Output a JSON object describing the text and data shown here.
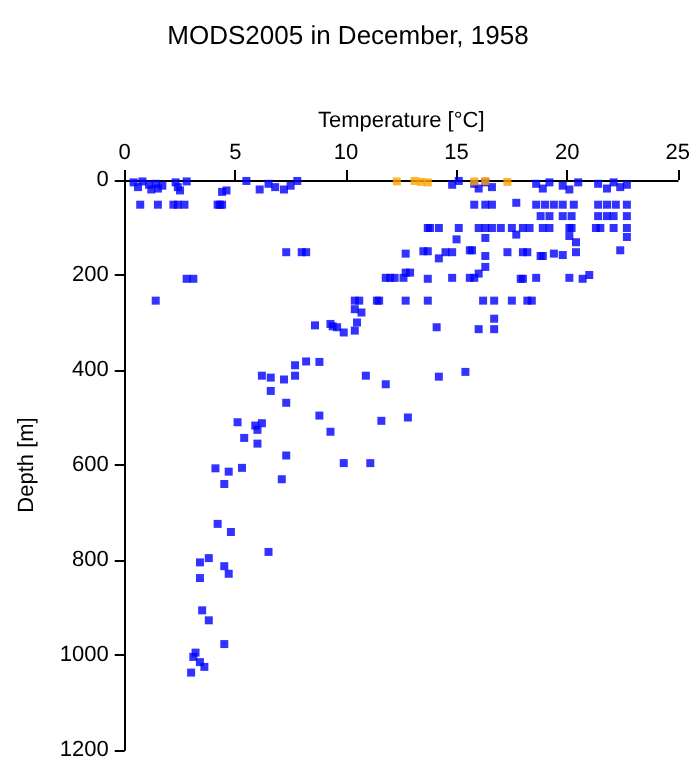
{
  "chart_data": {
    "type": "scatter",
    "title": "MODS2005 in December, 1958",
    "xlabel": "Temperature [°C]",
    "ylabel": "Depth [m]",
    "xlim": [
      0,
      25
    ],
    "xticks": [
      0,
      5,
      10,
      15,
      20,
      25
    ],
    "ylim": [
      1200,
      0
    ],
    "yticks": [
      0,
      200,
      400,
      600,
      800,
      1000,
      1200
    ],
    "marker": "square",
    "series": [
      {
        "color": "#0000ff",
        "x": [
          0.4,
          0.6,
          0.8,
          1.1,
          1.2,
          1.4,
          1.5,
          1.7,
          2.3,
          2.4,
          2.5,
          2.8,
          4.4,
          4.6,
          5.5,
          6.1,
          6.5,
          6.8,
          7.2,
          7.5,
          7.8,
          14.8,
          15.1,
          15.8,
          16.0,
          16.3,
          16.6,
          18.6,
          18.9,
          19.2,
          19.8,
          20.1,
          20.5,
          21.4,
          21.8,
          22.1,
          22.4,
          22.7,
          0.7,
          1.5,
          2.2,
          2.4,
          2.7,
          4.2,
          4.3,
          4.4,
          15.8,
          16.3,
          16.6,
          17.7,
          18.6,
          19.0,
          19.4,
          19.8,
          20.3,
          21.4,
          21.8,
          22.2,
          22.7,
          18.8,
          19.2,
          19.8,
          20.2,
          21.4,
          21.8,
          22.1,
          22.7,
          13.7,
          13.8,
          14.2,
          15.1,
          16.0,
          16.3,
          16.6,
          17.0,
          17.5,
          18.0,
          18.3,
          18.9,
          19.2,
          20.1,
          20.2,
          21.3,
          21.5,
          22.1,
          22.7,
          15.0,
          16.3,
          20.1,
          20.4,
          22.7,
          17.7,
          7.3,
          8.0,
          8.2,
          12.7,
          13.5,
          13.7,
          14.2,
          14.5,
          14.8,
          15.6,
          15.7,
          16.3,
          17.3,
          18.0,
          18.2,
          18.8,
          18.9,
          19.4,
          19.8,
          20.4,
          22.4,
          2.8,
          3.1,
          11.8,
          12.0,
          12.2,
          12.6,
          12.7,
          12.9,
          13.7,
          14.8,
          15.6,
          15.8,
          16.0,
          16.3,
          17.9,
          18.0,
          18.6,
          20.1,
          20.7,
          21.0,
          1.4,
          10.4,
          10.6,
          11.4,
          11.5,
          12.7,
          13.7,
          16.2,
          16.7,
          17.5,
          18.2,
          18.4,
          10.4,
          10.7,
          16.7,
          8.6,
          9.3,
          9.4,
          9.6,
          9.9,
          10.4,
          10.5,
          14.1,
          16.0,
          16.7,
          6.2,
          6.6,
          6.6,
          7.2,
          7.7,
          7.7,
          8.2,
          8.8,
          10.9,
          11.8,
          14.2,
          15.4,
          5.1,
          5.9,
          6.0,
          6.2,
          5.4,
          6.0,
          7.3,
          8.8,
          9.3,
          11.6,
          12.8,
          4.1,
          4.5,
          4.7,
          5.3,
          7.1,
          7.3,
          9.9,
          11.1,
          4.2,
          4.8,
          6.5,
          3.4,
          3.8,
          3.4,
          4.5,
          4.7,
          3.5,
          3.8,
          4.5,
          3.1,
          3.2,
          3.4,
          3.6,
          3.0
        ],
        "values": [
          5,
          15,
          3,
          10,
          20,
          8,
          18,
          12,
          5,
          15,
          22,
          3,
          25,
          22,
          2,
          20,
          8,
          15,
          20,
          12,
          2,
          10,
          2,
          8,
          18,
          5,
          15,
          8,
          18,
          5,
          12,
          20,
          5,
          8,
          18,
          5,
          15,
          10,
          52,
          52,
          52,
          52,
          52,
          52,
          52,
          52,
          52,
          52,
          52,
          48,
          52,
          52,
          52,
          52,
          52,
          52,
          52,
          52,
          52,
          76,
          76,
          76,
          76,
          76,
          76,
          76,
          76,
          101,
          101,
          101,
          101,
          101,
          101,
          101,
          101,
          101,
          101,
          101,
          101,
          101,
          101,
          101,
          101,
          101,
          101,
          101,
          125,
          122,
          118,
          131,
          120,
          115,
          152,
          152,
          152,
          155,
          150,
          150,
          165,
          152,
          152,
          148,
          148,
          160,
          152,
          152,
          152,
          160,
          160,
          155,
          158,
          152,
          148,
          208,
          208,
          206,
          206,
          206,
          206,
          195,
          195,
          208,
          206,
          206,
          206,
          197,
          183,
          208,
          208,
          206,
          206,
          208,
          200,
          254,
          254,
          254,
          254,
          254,
          254,
          254,
          254,
          254,
          254,
          254,
          254,
          272,
          279,
          292,
          306,
          303,
          308,
          310,
          321,
          317,
          300,
          310,
          314,
          314,
          412,
          416,
          444,
          420,
          412,
          390,
          382,
          383,
          412,
          430,
          414,
          404,
          510,
          517,
          526,
          512,
          543,
          555,
          469,
          496,
          530,
          507,
          500,
          607,
          640,
          614,
          606,
          630,
          580,
          596,
          596,
          724,
          741,
          783,
          805,
          796,
          838,
          813,
          829,
          906,
          927,
          977,
          1004,
          995,
          1015,
          1025,
          1037
        ]
      },
      {
        "color": "#ffa500",
        "x": [
          12.3,
          13.1,
          13.4,
          13.7,
          15.8,
          16.3,
          17.3
        ],
        "values": [
          3,
          2,
          4,
          5,
          3,
          2,
          4
        ]
      }
    ]
  }
}
